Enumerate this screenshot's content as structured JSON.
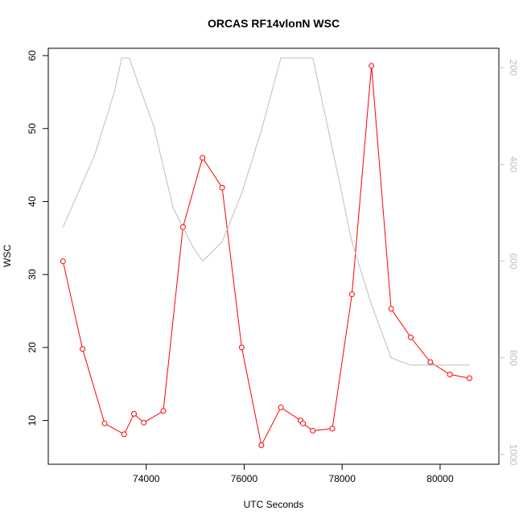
{
  "chart_data": {
    "type": "line",
    "title": "ORCAS RF14vlonN WSC",
    "xlabel": "UTC Seconds",
    "ylabel": "WSC",
    "y2label": "",
    "xlim": [
      72000,
      81200
    ],
    "ylim": [
      4,
      61
    ],
    "y2lim": [
      1020,
      160
    ],
    "x_ticks": [
      74000,
      76000,
      78000,
      80000
    ],
    "y_ticks": [
      10,
      20,
      30,
      40,
      50,
      60
    ],
    "y2_ticks": [
      200,
      400,
      600,
      800,
      1000
    ],
    "grid": false,
    "colors": {
      "primary": "#ff0000",
      "secondary": "#bebebe",
      "axis": "#000000"
    },
    "series": [
      {
        "axis": "left",
        "style": "line+markers",
        "x": [
          72300,
          72700,
          73150,
          73550,
          73750,
          73950,
          74350,
          74750,
          75150,
          75550,
          75950,
          76350,
          76750,
          77150,
          77200,
          77400,
          77800,
          78200,
          78600,
          79000,
          79400,
          79800,
          80200,
          80600
        ],
        "y": [
          31.8,
          19.8,
          9.6,
          8.1,
          10.9,
          9.7,
          11.3,
          36.5,
          46.0,
          41.9,
          20.0,
          6.6,
          11.8,
          10.0,
          9.6,
          8.6,
          8.9,
          27.3,
          58.6,
          25.3,
          21.4,
          18.0,
          16.3,
          15.8
        ]
      },
      {
        "axis": "right",
        "style": "line",
        "x": [
          72300,
          72950,
          73350,
          73500,
          73650,
          74150,
          74550,
          74950,
          75150,
          75550,
          75950,
          76350,
          76750,
          76950,
          77150,
          77400,
          77700,
          78200,
          78600,
          79000,
          79400,
          79800,
          80200,
          80600
        ],
        "y": [
          530,
          380,
          250,
          180,
          180,
          320,
          490,
          570,
          600,
          560,
          460,
          330,
          180,
          180,
          180,
          180,
          320,
          560,
          690,
          800,
          815,
          815,
          815,
          815
        ]
      }
    ]
  }
}
